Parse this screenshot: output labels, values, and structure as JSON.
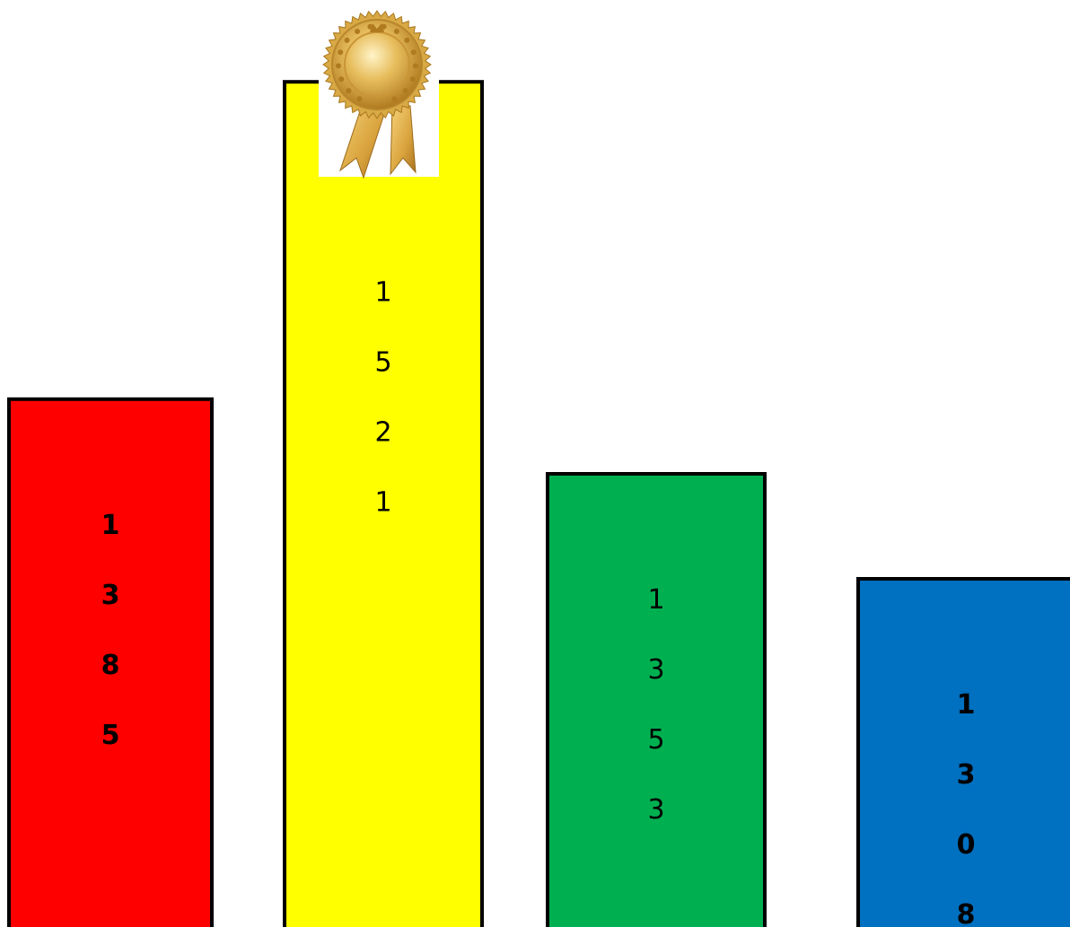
{
  "chart_data": {
    "type": "bar",
    "title": "",
    "xlabel": "",
    "ylabel": "",
    "categories": [
      "",
      "",
      "",
      ""
    ],
    "values": [
      1385,
      1521,
      1353,
      1308
    ],
    "labels": [
      "1385",
      "1521",
      "1353",
      "1308"
    ],
    "label_bold": [
      true,
      false,
      false,
      true
    ],
    "colors": [
      "#ff0000",
      "#ffff00",
      "#00b050",
      "#0070c0"
    ],
    "edge_color": "#000000",
    "axes_visible": false,
    "grid": false,
    "legend": "none",
    "winner_index": 1,
    "winner_badge": "gold-award-ribbon-icon"
  }
}
